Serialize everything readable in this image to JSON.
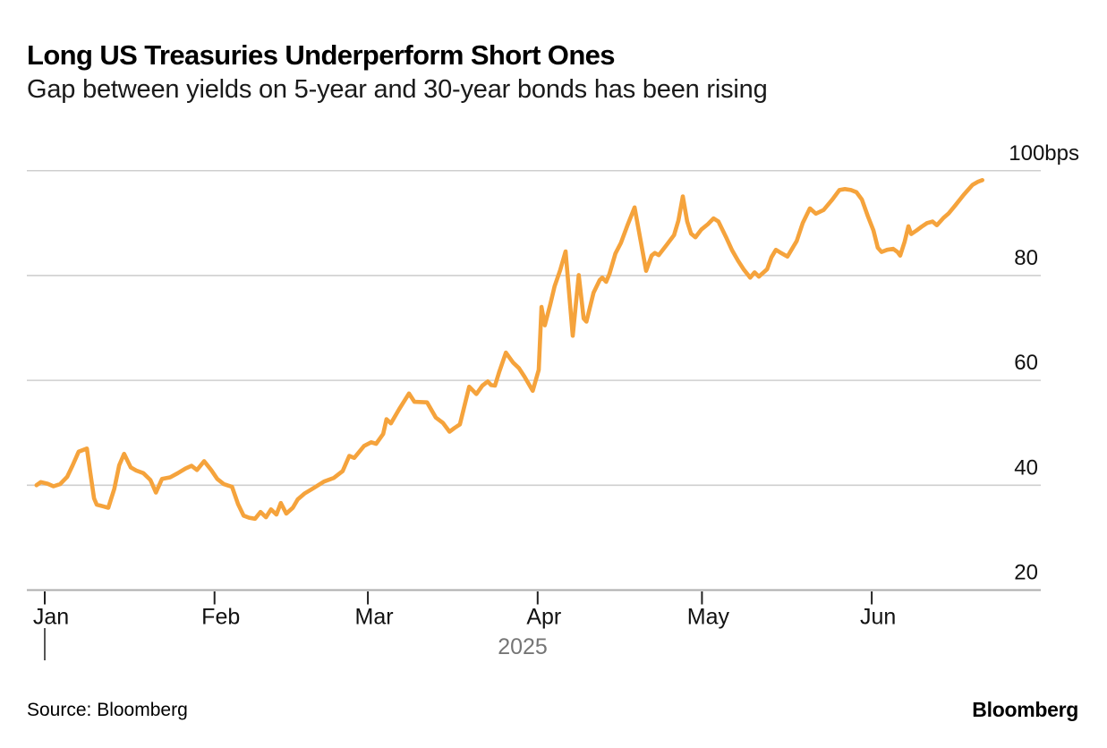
{
  "header": {
    "title": "Long US Treasuries Underperform Short Ones",
    "subtitle": "Gap between yields on 5-year and 30-year bonds has been rising"
  },
  "footer": {
    "source": "Source: Bloomberg",
    "brand": "Bloomberg"
  },
  "colors": {
    "line": "#F5A33C",
    "grid": "#CFCFCF",
    "axis": "#ADADAD",
    "tick": "#222222",
    "year_tick": "#444444",
    "text": "#111111",
    "muted": "#757575"
  },
  "chart_data": {
    "type": "line",
    "title": "Long US Treasuries Underperform Short Ones",
    "subtitle": "Gap between yields on 5-year and 30-year bonds has been rising",
    "unit": "bps",
    "grid": true,
    "legend": false,
    "y_axis": {
      "min": 20,
      "max": 100,
      "ticks": [
        {
          "value": 100,
          "label": "100bps"
        },
        {
          "value": 80,
          "label": "80"
        },
        {
          "value": 60,
          "label": "60"
        },
        {
          "value": 40,
          "label": "40"
        },
        {
          "value": 20,
          "label": "20"
        }
      ],
      "label_position": "right"
    },
    "x_axis": {
      "unit": "days since Jan 1 2025",
      "year_label": "2025",
      "months": [
        {
          "label": "Jan",
          "day": 0
        },
        {
          "label": "Feb",
          "day": 31
        },
        {
          "label": "Mar",
          "day": 59
        },
        {
          "label": "Apr",
          "day": 90
        },
        {
          "label": "May",
          "day": 120
        },
        {
          "label": "Jun",
          "day": 151
        }
      ]
    },
    "series": [
      {
        "points": [
          [
            -1.5,
            40.0
          ],
          [
            -0.7,
            40.6
          ],
          [
            0.5,
            40.3
          ],
          [
            1.6,
            39.8
          ],
          [
            2.8,
            40.2
          ],
          [
            4.1,
            41.6
          ],
          [
            5.1,
            43.8
          ],
          [
            6.2,
            46.4
          ],
          [
            7.7,
            47.0
          ],
          [
            8.3,
            42.5
          ],
          [
            9.0,
            37.5
          ],
          [
            9.5,
            36.3
          ],
          [
            10.6,
            36.0
          ],
          [
            11.6,
            35.7
          ],
          [
            12.7,
            39.3
          ],
          [
            13.6,
            43.8
          ],
          [
            14.5,
            46.0
          ],
          [
            15.7,
            43.4
          ],
          [
            16.7,
            42.8
          ],
          [
            18.0,
            42.3
          ],
          [
            19.3,
            41.0
          ],
          [
            20.3,
            38.6
          ],
          [
            21.4,
            41.2
          ],
          [
            22.9,
            41.5
          ],
          [
            24.3,
            42.3
          ],
          [
            25.7,
            43.2
          ],
          [
            26.8,
            43.7
          ],
          [
            27.8,
            42.9
          ],
          [
            29.1,
            44.6
          ],
          [
            30.4,
            42.9
          ],
          [
            31.5,
            41.2
          ],
          [
            32.7,
            40.2
          ],
          [
            34.2,
            39.7
          ],
          [
            35.3,
            36.4
          ],
          [
            36.3,
            34.2
          ],
          [
            37.3,
            33.8
          ],
          [
            38.4,
            33.6
          ],
          [
            39.4,
            34.9
          ],
          [
            40.4,
            33.9
          ],
          [
            41.3,
            35.4
          ],
          [
            42.3,
            34.4
          ],
          [
            43.1,
            36.6
          ],
          [
            44.1,
            34.6
          ],
          [
            45.3,
            35.7
          ],
          [
            46.2,
            37.3
          ],
          [
            47.4,
            38.4
          ],
          [
            49.0,
            39.4
          ],
          [
            51.0,
            40.7
          ],
          [
            52.8,
            41.4
          ],
          [
            54.4,
            42.7
          ],
          [
            55.6,
            45.6
          ],
          [
            56.5,
            45.2
          ],
          [
            58.3,
            47.5
          ],
          [
            59.6,
            48.2
          ],
          [
            60.5,
            47.9
          ],
          [
            61.8,
            49.8
          ],
          [
            62.4,
            52.6
          ],
          [
            63.2,
            51.8
          ],
          [
            64.7,
            54.5
          ],
          [
            66.5,
            57.5
          ],
          [
            67.5,
            55.9
          ],
          [
            69.8,
            55.8
          ],
          [
            71.4,
            52.9
          ],
          [
            72.7,
            51.9
          ],
          [
            73.9,
            50.2
          ],
          [
            74.8,
            50.9
          ],
          [
            75.8,
            51.6
          ],
          [
            76.6,
            55.0
          ],
          [
            77.5,
            58.8
          ],
          [
            78.8,
            57.4
          ],
          [
            79.9,
            59.0
          ],
          [
            80.9,
            59.8
          ],
          [
            81.5,
            59.1
          ],
          [
            82.2,
            59.0
          ],
          [
            83.0,
            61.7
          ],
          [
            84.2,
            65.3
          ],
          [
            85.5,
            63.4
          ],
          [
            86.6,
            62.3
          ],
          [
            87.6,
            60.7
          ],
          [
            89.1,
            58.0
          ],
          [
            90.2,
            62.0
          ],
          [
            90.7,
            74.0
          ],
          [
            91.3,
            70.5
          ],
          [
            92.3,
            74.5
          ],
          [
            93.1,
            78.0
          ],
          [
            94.1,
            81.0
          ],
          [
            95.1,
            84.6
          ],
          [
            96.4,
            68.5
          ],
          [
            97.5,
            80.1
          ],
          [
            98.4,
            71.8
          ],
          [
            98.9,
            71.2
          ],
          [
            100.2,
            76.7
          ],
          [
            101.3,
            79.1
          ],
          [
            101.8,
            79.6
          ],
          [
            102.5,
            78.8
          ],
          [
            103.1,
            80.3
          ],
          [
            104.2,
            84.2
          ],
          [
            105.2,
            86.2
          ],
          [
            106.4,
            89.6
          ],
          [
            107.7,
            93.0
          ],
          [
            109.8,
            80.9
          ],
          [
            110.8,
            83.8
          ],
          [
            111.4,
            84.3
          ],
          [
            112.1,
            83.9
          ],
          [
            113.6,
            85.9
          ],
          [
            114.9,
            87.7
          ],
          [
            115.7,
            90.5
          ],
          [
            116.5,
            95.1
          ],
          [
            117.3,
            90.3
          ],
          [
            118.0,
            88.0
          ],
          [
            118.8,
            87.3
          ],
          [
            119.9,
            88.8
          ],
          [
            121.1,
            89.8
          ],
          [
            122.1,
            90.9
          ],
          [
            123.0,
            90.3
          ],
          [
            124.5,
            87.1
          ],
          [
            125.5,
            84.8
          ],
          [
            126.6,
            82.8
          ],
          [
            127.6,
            81.2
          ],
          [
            128.8,
            79.6
          ],
          [
            129.6,
            80.6
          ],
          [
            130.4,
            79.8
          ],
          [
            131.9,
            81.2
          ],
          [
            132.7,
            83.5
          ],
          [
            133.5,
            84.9
          ],
          [
            134.3,
            84.4
          ],
          [
            135.6,
            83.6
          ],
          [
            137.3,
            86.6
          ],
          [
            138.4,
            90.0
          ],
          [
            139.7,
            92.8
          ],
          [
            140.8,
            91.8
          ],
          [
            142.2,
            92.5
          ],
          [
            143.8,
            94.5
          ],
          [
            145.1,
            96.3
          ],
          [
            146.1,
            96.5
          ],
          [
            147.2,
            96.3
          ],
          [
            148.2,
            95.9
          ],
          [
            149.2,
            94.5
          ],
          [
            150.3,
            91.3
          ],
          [
            151.3,
            88.6
          ],
          [
            152.1,
            85.3
          ],
          [
            152.8,
            84.5
          ],
          [
            153.8,
            84.9
          ],
          [
            154.9,
            85.1
          ],
          [
            155.7,
            84.5
          ],
          [
            156.2,
            83.8
          ],
          [
            157.0,
            86.4
          ],
          [
            157.7,
            89.4
          ],
          [
            158.2,
            87.9
          ],
          [
            159.2,
            88.6
          ],
          [
            160.1,
            89.3
          ],
          [
            161.1,
            90.0
          ],
          [
            162.1,
            90.3
          ],
          [
            162.9,
            89.6
          ],
          [
            164.1,
            91.0
          ],
          [
            165.0,
            91.8
          ],
          [
            166.2,
            93.3
          ],
          [
            167.8,
            95.4
          ],
          [
            169.4,
            97.3
          ],
          [
            170.4,
            97.9
          ],
          [
            171.2,
            98.2
          ]
        ]
      }
    ]
  }
}
